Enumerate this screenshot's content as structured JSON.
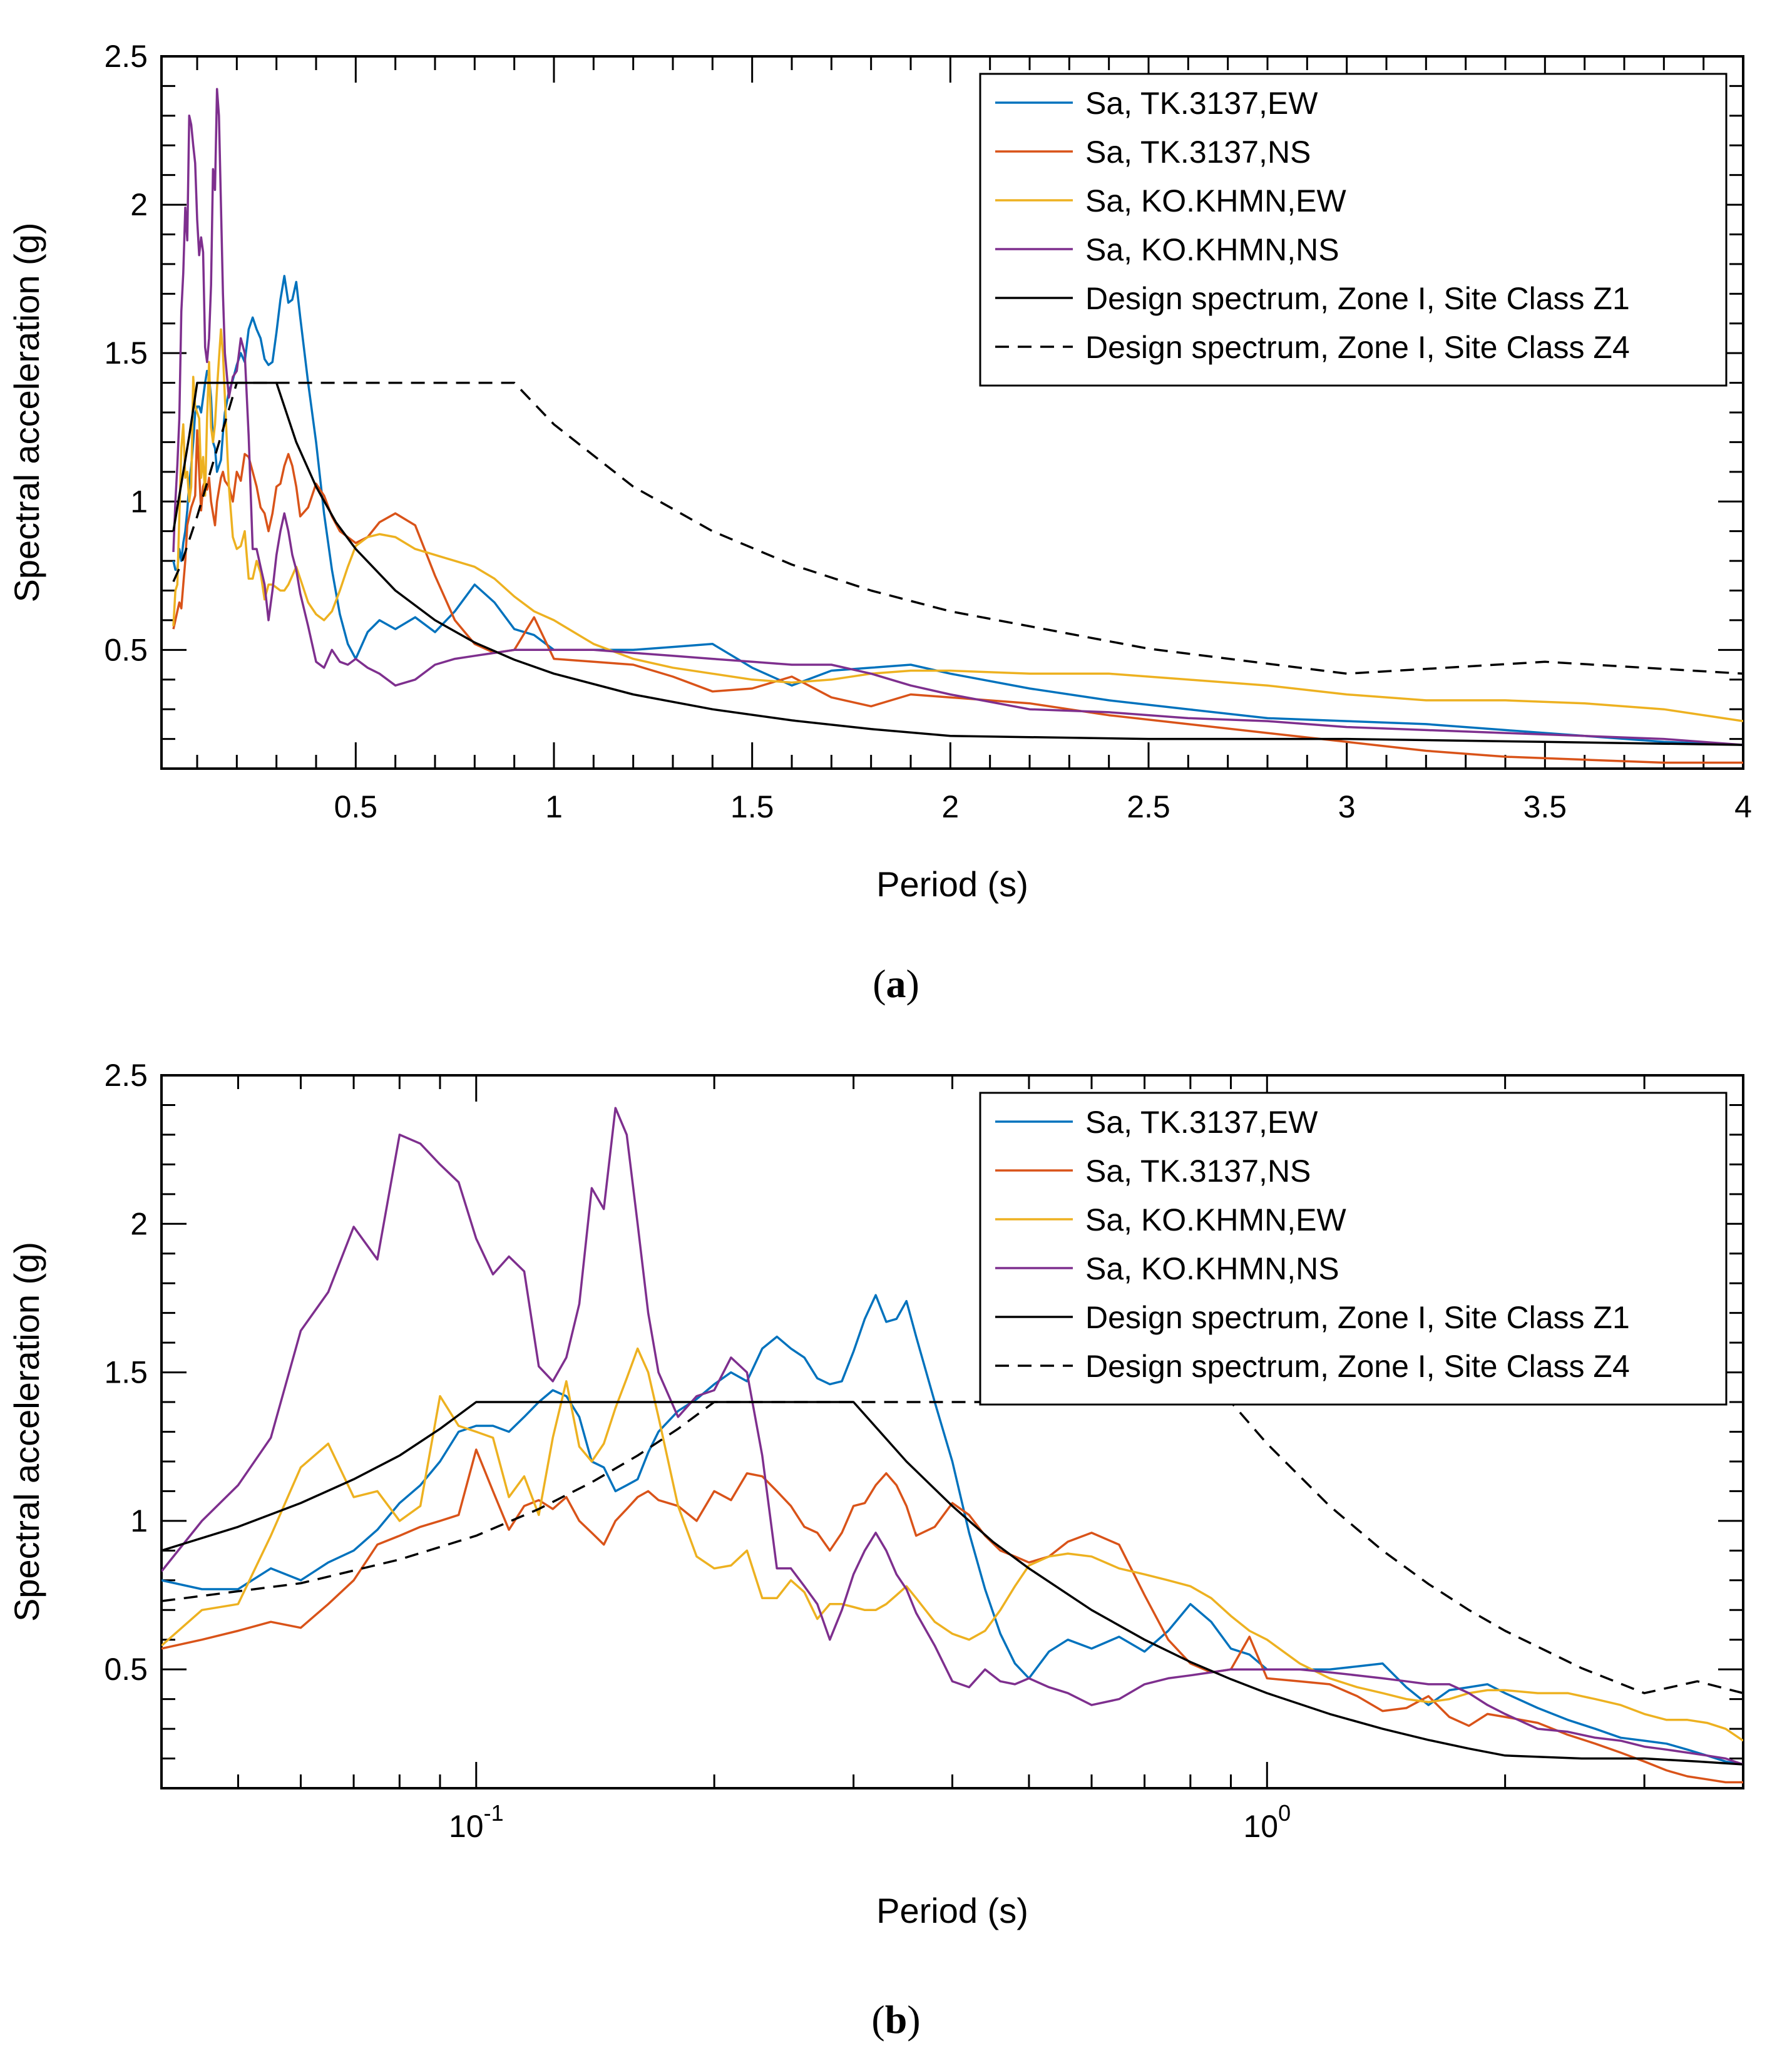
{
  "figure": {
    "colors": {
      "tk_ew": "#0072BD",
      "tk_ns": "#D95319",
      "ko_ew": "#EDB120",
      "ko_ns": "#7E2F8E",
      "design": "#000000",
      "axes": "#000000",
      "background": "#FFFFFF"
    },
    "captions": {
      "a": "a",
      "b": "b"
    }
  },
  "chart_data": [
    {
      "id": "a",
      "type": "line",
      "xscale": "linear",
      "xlabel": "Period (s)",
      "ylabel": "Spectral acceleration (g)",
      "xlim": [
        0.01,
        4
      ],
      "ylim": [
        0.1,
        2.5
      ],
      "xticks": [
        0.5,
        1,
        1.5,
        2,
        2.5,
        3,
        3.5,
        4
      ],
      "xtick_labels": [
        "0.5",
        "1",
        "1.5",
        "2",
        "2.5",
        "3",
        "3.5",
        "4"
      ],
      "yticks": [
        0.5,
        1,
        1.5,
        2,
        2.5
      ],
      "ytick_labels": [
        "0.5",
        "1",
        "1.5",
        "2",
        "2.5"
      ],
      "legend_position": "top-right",
      "grid": false
    },
    {
      "id": "b",
      "type": "line",
      "xscale": "log",
      "xlabel": "Period (s)",
      "ylabel": "Spectral acceleration (g)",
      "xlim": [
        0.04,
        4
      ],
      "ylim": [
        0.1,
        2.5
      ],
      "xticks": [
        0.1,
        1
      ],
      "xtick_labels": [
        {
          "base": "10",
          "exp": "-1"
        },
        {
          "base": "10",
          "exp": "0"
        }
      ],
      "yticks": [
        0.5,
        1,
        1.5,
        2,
        2.5
      ],
      "ytick_labels": [
        "0.5",
        "1",
        "1.5",
        "2",
        "2.5"
      ],
      "legend_position": "top-right",
      "grid": false
    }
  ],
  "series": [
    {
      "key": "tk_ew",
      "name": "Sa, TK.3137,EW",
      "color": "#0072BD",
      "dash": false,
      "x": [
        0.04,
        0.045,
        0.05,
        0.055,
        0.06,
        0.065,
        0.07,
        0.075,
        0.08,
        0.085,
        0.09,
        0.095,
        0.1,
        0.105,
        0.11,
        0.115,
        0.12,
        0.125,
        0.13,
        0.135,
        0.14,
        0.145,
        0.15,
        0.155,
        0.16,
        0.165,
        0.17,
        0.18,
        0.19,
        0.2,
        0.21,
        0.22,
        0.23,
        0.24,
        0.25,
        0.26,
        0.27,
        0.28,
        0.29,
        0.3,
        0.31,
        0.32,
        0.33,
        0.34,
        0.35,
        0.36,
        0.38,
        0.4,
        0.42,
        0.44,
        0.46,
        0.48,
        0.5,
        0.53,
        0.56,
        0.6,
        0.65,
        0.7,
        0.75,
        0.8,
        0.85,
        0.9,
        0.95,
        1.0,
        1.1,
        1.2,
        1.3,
        1.4,
        1.5,
        1.6,
        1.7,
        1.8,
        1.9,
        2.0,
        2.2,
        2.4,
        2.6,
        2.8,
        3.0,
        3.2,
        3.4,
        3.6,
        3.8,
        4.0
      ],
      "y": [
        0.8,
        0.77,
        0.77,
        0.84,
        0.8,
        0.86,
        0.9,
        0.97,
        1.06,
        1.12,
        1.2,
        1.3,
        1.32,
        1.32,
        1.3,
        1.35,
        1.4,
        1.44,
        1.42,
        1.35,
        1.2,
        1.18,
        1.1,
        1.12,
        1.14,
        1.23,
        1.3,
        1.37,
        1.41,
        1.46,
        1.5,
        1.47,
        1.58,
        1.62,
        1.58,
        1.55,
        1.48,
        1.46,
        1.47,
        1.57,
        1.68,
        1.76,
        1.67,
        1.68,
        1.74,
        1.62,
        1.4,
        1.2,
        0.96,
        0.77,
        0.62,
        0.52,
        0.47,
        0.56,
        0.6,
        0.57,
        0.61,
        0.56,
        0.63,
        0.72,
        0.66,
        0.57,
        0.55,
        0.5,
        0.5,
        0.5,
        0.51,
        0.52,
        0.44,
        0.38,
        0.43,
        0.44,
        0.45,
        0.42,
        0.37,
        0.33,
        0.3,
        0.27,
        0.26,
        0.25,
        0.23,
        0.21,
        0.19,
        0.18
      ]
    },
    {
      "key": "tk_ns",
      "name": "Sa, TK.3137,NS",
      "color": "#D95319",
      "dash": false,
      "x": [
        0.04,
        0.045,
        0.05,
        0.055,
        0.06,
        0.065,
        0.07,
        0.075,
        0.08,
        0.085,
        0.09,
        0.095,
        0.1,
        0.105,
        0.11,
        0.115,
        0.12,
        0.125,
        0.13,
        0.135,
        0.14,
        0.145,
        0.15,
        0.155,
        0.16,
        0.165,
        0.17,
        0.18,
        0.19,
        0.2,
        0.21,
        0.22,
        0.23,
        0.24,
        0.25,
        0.26,
        0.27,
        0.28,
        0.29,
        0.3,
        0.31,
        0.32,
        0.33,
        0.34,
        0.35,
        0.36,
        0.38,
        0.4,
        0.42,
        0.44,
        0.46,
        0.48,
        0.5,
        0.53,
        0.56,
        0.6,
        0.65,
        0.7,
        0.75,
        0.8,
        0.85,
        0.9,
        0.95,
        1.0,
        1.1,
        1.2,
        1.3,
        1.4,
        1.5,
        1.6,
        1.7,
        1.8,
        1.9,
        2.0,
        2.2,
        2.4,
        2.6,
        2.8,
        3.0,
        3.2,
        3.4,
        3.6,
        3.8,
        4.0
      ],
      "y": [
        0.57,
        0.6,
        0.63,
        0.66,
        0.64,
        0.72,
        0.8,
        0.92,
        0.95,
        0.98,
        1.0,
        1.02,
        1.24,
        1.1,
        0.97,
        1.05,
        1.07,
        1.04,
        1.08,
        1.0,
        0.96,
        0.92,
        1.0,
        1.04,
        1.08,
        1.1,
        1.07,
        1.05,
        1.0,
        1.1,
        1.07,
        1.16,
        1.15,
        1.1,
        1.05,
        0.98,
        0.96,
        0.9,
        0.96,
        1.05,
        1.06,
        1.12,
        1.16,
        1.12,
        1.05,
        0.95,
        0.98,
        1.06,
        1.02,
        0.95,
        0.9,
        0.88,
        0.86,
        0.88,
        0.93,
        0.96,
        0.92,
        0.75,
        0.6,
        0.52,
        0.49,
        0.5,
        0.61,
        0.47,
        0.46,
        0.45,
        0.41,
        0.36,
        0.37,
        0.41,
        0.34,
        0.31,
        0.35,
        0.34,
        0.32,
        0.28,
        0.25,
        0.22,
        0.19,
        0.16,
        0.14,
        0.13,
        0.12,
        0.12
      ]
    },
    {
      "key": "ko_ew",
      "name": "Sa, KO.KHMN,EW",
      "color": "#EDB120",
      "dash": false,
      "x": [
        0.04,
        0.045,
        0.05,
        0.055,
        0.06,
        0.065,
        0.07,
        0.075,
        0.08,
        0.085,
        0.09,
        0.095,
        0.1,
        0.105,
        0.11,
        0.115,
        0.12,
        0.125,
        0.13,
        0.135,
        0.14,
        0.145,
        0.15,
        0.155,
        0.16,
        0.165,
        0.17,
        0.18,
        0.19,
        0.2,
        0.21,
        0.22,
        0.23,
        0.24,
        0.25,
        0.26,
        0.27,
        0.28,
        0.29,
        0.3,
        0.31,
        0.32,
        0.33,
        0.34,
        0.35,
        0.36,
        0.38,
        0.4,
        0.42,
        0.44,
        0.46,
        0.48,
        0.5,
        0.53,
        0.56,
        0.6,
        0.65,
        0.7,
        0.75,
        0.8,
        0.85,
        0.9,
        0.95,
        1.0,
        1.1,
        1.2,
        1.3,
        1.4,
        1.5,
        1.6,
        1.7,
        1.8,
        1.9,
        2.0,
        2.2,
        2.4,
        2.6,
        2.8,
        3.0,
        3.2,
        3.4,
        3.6,
        3.8,
        4.0
      ],
      "y": [
        0.58,
        0.7,
        0.72,
        0.95,
        1.18,
        1.26,
        1.08,
        1.1,
        1.0,
        1.05,
        1.42,
        1.32,
        1.3,
        1.28,
        1.08,
        1.15,
        1.02,
        1.28,
        1.47,
        1.25,
        1.2,
        1.26,
        1.38,
        1.48,
        1.58,
        1.5,
        1.35,
        1.05,
        0.88,
        0.84,
        0.85,
        0.9,
        0.74,
        0.74,
        0.8,
        0.76,
        0.67,
        0.72,
        0.72,
        0.71,
        0.7,
        0.7,
        0.72,
        0.75,
        0.78,
        0.74,
        0.66,
        0.62,
        0.6,
        0.63,
        0.7,
        0.78,
        0.85,
        0.88,
        0.89,
        0.88,
        0.84,
        0.82,
        0.8,
        0.78,
        0.74,
        0.68,
        0.63,
        0.6,
        0.52,
        0.47,
        0.44,
        0.42,
        0.4,
        0.39,
        0.4,
        0.42,
        0.43,
        0.43,
        0.42,
        0.42,
        0.4,
        0.38,
        0.35,
        0.33,
        0.33,
        0.32,
        0.3,
        0.26
      ]
    },
    {
      "key": "ko_ns",
      "name": "Sa, KO.KHMN,NS",
      "color": "#7E2F8E",
      "dash": false,
      "x": [
        0.04,
        0.045,
        0.05,
        0.055,
        0.06,
        0.065,
        0.07,
        0.075,
        0.08,
        0.085,
        0.09,
        0.095,
        0.1,
        0.105,
        0.11,
        0.115,
        0.12,
        0.125,
        0.13,
        0.135,
        0.14,
        0.145,
        0.15,
        0.155,
        0.16,
        0.165,
        0.17,
        0.18,
        0.19,
        0.2,
        0.21,
        0.22,
        0.23,
        0.24,
        0.25,
        0.26,
        0.27,
        0.28,
        0.29,
        0.3,
        0.31,
        0.32,
        0.33,
        0.34,
        0.35,
        0.36,
        0.38,
        0.4,
        0.42,
        0.44,
        0.46,
        0.48,
        0.5,
        0.53,
        0.56,
        0.6,
        0.65,
        0.7,
        0.75,
        0.8,
        0.85,
        0.9,
        0.95,
        1.0,
        1.1,
        1.2,
        1.3,
        1.4,
        1.5,
        1.6,
        1.7,
        1.8,
        1.9,
        2.0,
        2.2,
        2.4,
        2.6,
        2.8,
        3.0,
        3.2,
        3.4,
        3.6,
        3.8,
        4.0
      ],
      "y": [
        0.83,
        1.0,
        1.12,
        1.28,
        1.64,
        1.77,
        1.99,
        1.88,
        2.3,
        2.27,
        2.2,
        2.14,
        1.95,
        1.83,
        1.89,
        1.84,
        1.52,
        1.47,
        1.55,
        1.73,
        2.12,
        2.05,
        2.39,
        2.3,
        2.0,
        1.7,
        1.5,
        1.35,
        1.42,
        1.44,
        1.55,
        1.5,
        1.22,
        0.84,
        0.84,
        0.78,
        0.72,
        0.6,
        0.7,
        0.82,
        0.9,
        0.96,
        0.9,
        0.82,
        0.77,
        0.69,
        0.58,
        0.46,
        0.44,
        0.5,
        0.46,
        0.45,
        0.47,
        0.44,
        0.42,
        0.38,
        0.4,
        0.45,
        0.47,
        0.48,
        0.49,
        0.5,
        0.5,
        0.5,
        0.5,
        0.49,
        0.48,
        0.47,
        0.46,
        0.45,
        0.45,
        0.42,
        0.38,
        0.35,
        0.3,
        0.29,
        0.27,
        0.26,
        0.24,
        0.23,
        0.22,
        0.21,
        0.2,
        0.18
      ]
    },
    {
      "key": "z1",
      "name": "Design spectrum, Zone I, Site Class Z1",
      "color": "#000000",
      "dash": false,
      "x": [
        0.04,
        0.05,
        0.06,
        0.07,
        0.08,
        0.09,
        0.1,
        0.3,
        0.35,
        0.4,
        0.45,
        0.5,
        0.6,
        0.7,
        0.8,
        0.9,
        1.0,
        1.2,
        1.4,
        1.6,
        1.8,
        2.0,
        2.5,
        3.0,
        3.5,
        4.0
      ],
      "y": [
        0.9,
        0.98,
        1.06,
        1.14,
        1.22,
        1.31,
        1.4,
        1.4,
        1.2,
        1.05,
        0.93,
        0.84,
        0.7,
        0.6,
        0.525,
        0.467,
        0.42,
        0.35,
        0.3,
        0.2625,
        0.2333,
        0.21,
        0.2,
        0.2,
        0.19,
        0.18
      ]
    },
    {
      "key": "z4",
      "name": "Design spectrum, Zone I, Site Class Z4",
      "color": "#000000",
      "dash": true,
      "x": [
        0.04,
        0.06,
        0.08,
        0.1,
        0.12,
        0.14,
        0.16,
        0.18,
        0.2,
        0.9,
        1.0,
        1.2,
        1.4,
        1.6,
        1.8,
        2.0,
        2.5,
        3.0,
        3.5,
        4.0
      ],
      "y": [
        0.73,
        0.79,
        0.87,
        0.95,
        1.04,
        1.13,
        1.22,
        1.31,
        1.4,
        1.4,
        1.26,
        1.05,
        0.9,
        0.7875,
        0.7,
        0.63,
        0.504,
        0.42,
        0.46,
        0.42
      ]
    }
  ]
}
